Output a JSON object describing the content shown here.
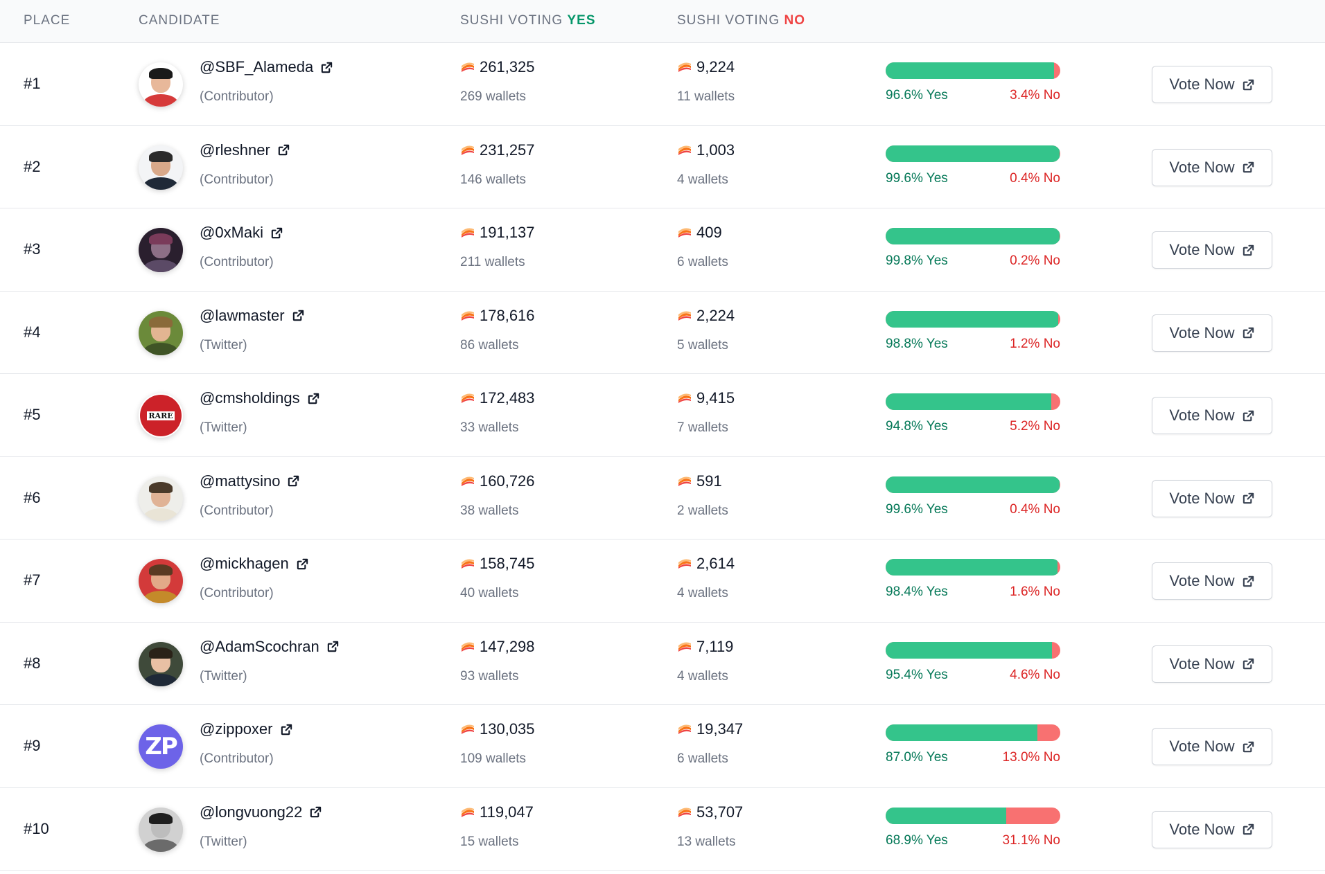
{
  "header": {
    "place": "PLACE",
    "candidate": "CANDIDATE",
    "yes_prefix": "SUSHI VOTING",
    "yes_word": "YES",
    "no_prefix": "SUSHI VOTING",
    "no_word": "NO"
  },
  "colors": {
    "yes_bar": "#34c48b",
    "no_bar": "#f87171",
    "yes_text": "#047857",
    "no_text": "#dc2626"
  },
  "vote_button_label": "Vote Now",
  "rows": [
    {
      "place": "#1",
      "handle": "@SBF_Alameda",
      "role": "(Contributor)",
      "yes_amount": "261,325",
      "yes_wallets": "269 wallets",
      "no_amount": "9,224",
      "no_wallets": "11 wallets",
      "yes_pct": "96.6% Yes",
      "no_pct": "3.4% No",
      "yes_fraction": 0.966,
      "avatar": "person-red-shirt"
    },
    {
      "place": "#2",
      "handle": "@rleshner",
      "role": "(Contributor)",
      "yes_amount": "231,257",
      "yes_wallets": "146 wallets",
      "no_amount": "1,003",
      "no_wallets": "4 wallets",
      "yes_pct": "99.6% Yes",
      "no_pct": "0.4% No",
      "yes_fraction": 0.996,
      "avatar": "person-suit"
    },
    {
      "place": "#3",
      "handle": "@0xMaki",
      "role": "(Contributor)",
      "yes_amount": "191,137",
      "yes_wallets": "211 wallets",
      "no_amount": "409",
      "no_wallets": "6 wallets",
      "yes_pct": "99.8% Yes",
      "no_pct": "0.2% No",
      "yes_fraction": 0.998,
      "avatar": "dark-artwork"
    },
    {
      "place": "#4",
      "handle": "@lawmaster",
      "role": "(Twitter)",
      "yes_amount": "178,616",
      "yes_wallets": "86 wallets",
      "no_amount": "2,224",
      "no_wallets": "5 wallets",
      "yes_pct": "98.8% Yes",
      "no_pct": "1.2% No",
      "yes_fraction": 0.988,
      "avatar": "person-outdoor"
    },
    {
      "place": "#5",
      "handle": "@cmsholdings",
      "role": "(Twitter)",
      "yes_amount": "172,483",
      "yes_wallets": "33 wallets",
      "no_amount": "9,415",
      "no_wallets": "7 wallets",
      "yes_pct": "94.8% Yes",
      "no_pct": "5.2% No",
      "yes_fraction": 0.948,
      "avatar": "rare-logo",
      "avatar_text": "RARE"
    },
    {
      "place": "#6",
      "handle": "@mattysino",
      "role": "(Contributor)",
      "yes_amount": "160,726",
      "yes_wallets": "38 wallets",
      "no_amount": "591",
      "no_wallets": "2 wallets",
      "yes_pct": "99.6% Yes",
      "no_pct": "0.4% No",
      "yes_fraction": 0.996,
      "avatar": "person-light"
    },
    {
      "place": "#7",
      "handle": "@mickhagen",
      "role": "(Contributor)",
      "yes_amount": "158,745",
      "yes_wallets": "40 wallets",
      "no_amount": "2,614",
      "no_wallets": "4 wallets",
      "yes_pct": "98.4% Yes",
      "no_pct": "1.6% No",
      "yes_fraction": 0.984,
      "avatar": "person-red-bg"
    },
    {
      "place": "#8",
      "handle": "@AdamScochran",
      "role": "(Twitter)",
      "yes_amount": "147,298",
      "yes_wallets": "93 wallets",
      "no_amount": "7,119",
      "no_wallets": "4 wallets",
      "yes_pct": "95.4% Yes",
      "no_pct": "4.6% No",
      "yes_fraction": 0.954,
      "avatar": "person-glasses"
    },
    {
      "place": "#9",
      "handle": "@zippoxer",
      "role": "(Contributor)",
      "yes_amount": "130,035",
      "yes_wallets": "109 wallets",
      "no_amount": "19,347",
      "no_wallets": "6 wallets",
      "yes_pct": "87.0% Yes",
      "no_pct": "13.0% No",
      "yes_fraction": 0.87,
      "avatar": "zp-logo",
      "avatar_text": "ZP"
    },
    {
      "place": "#10",
      "handle": "@longvuong22",
      "role": "(Twitter)",
      "yes_amount": "119,047",
      "yes_wallets": "15 wallets",
      "no_amount": "53,707",
      "no_wallets": "13 wallets",
      "yes_pct": "68.9% Yes",
      "no_pct": "31.1% No",
      "yes_fraction": 0.689,
      "avatar": "person-grayscale"
    }
  ]
}
